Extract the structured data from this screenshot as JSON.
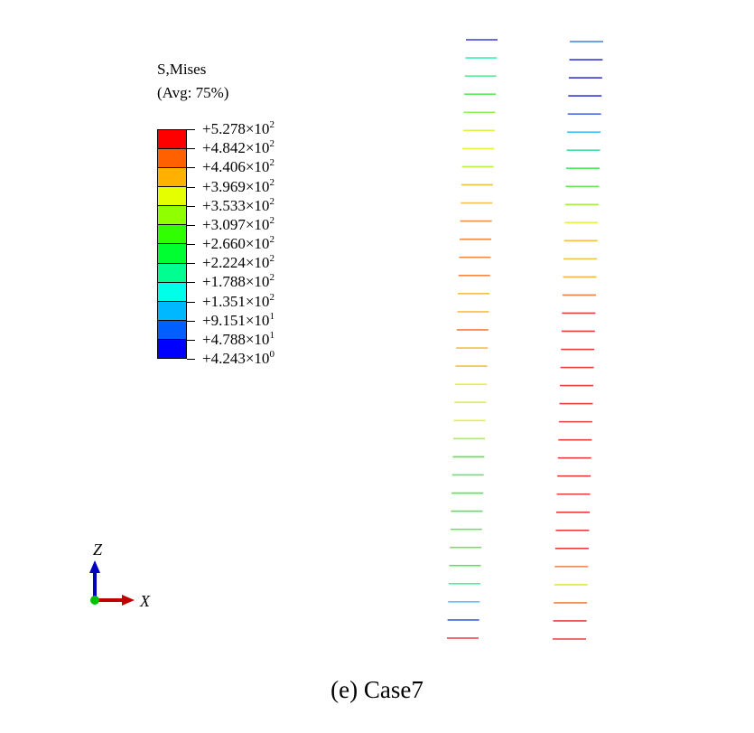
{
  "legend": {
    "title_line1": "S,Mises",
    "title_line2": "(Avg: 75%)",
    "band_colors": [
      "#FF0000",
      "#FF6000",
      "#FFB000",
      "#E6FF00",
      "#90FF00",
      "#30FF00",
      "#00FF30",
      "#00FF90",
      "#00FFE8",
      "#00B8FF",
      "#0060FF",
      "#0000FF"
    ],
    "labels": [
      {
        "m": "+5.278×10",
        "e": "2"
      },
      {
        "m": "+4.842×10",
        "e": "2"
      },
      {
        "m": "+4.406×10",
        "e": "2"
      },
      {
        "m": "+3.969×10",
        "e": "2"
      },
      {
        "m": "+3.533×10",
        "e": "2"
      },
      {
        "m": "+3.097×10",
        "e": "2"
      },
      {
        "m": "+2.660×10",
        "e": "2"
      },
      {
        "m": "+2.224×10",
        "e": "2"
      },
      {
        "m": "+1.788×10",
        "e": "2"
      },
      {
        "m": "+1.351×10",
        "e": "2"
      },
      {
        "m": "+9.151×10",
        "e": "1"
      },
      {
        "m": "+4.788×10",
        "e": "1"
      },
      {
        "m": "+4.243×10",
        "e": "0"
      }
    ]
  },
  "axes_triad": {
    "z_label": "Z",
    "x_label": "X",
    "z_color": "#0000C0",
    "x_color": "#C00000",
    "origin_color": "#00C000"
  },
  "model": {
    "left_column_colors": [
      "#3a3ad8",
      "#40f0b0",
      "#50e890",
      "#60e860",
      "#90f050",
      "#e0f040",
      "#e8f040",
      "#c0f040",
      "#f0c040",
      "#f0c050",
      "#f09040",
      "#f08848",
      "#f08848",
      "#f08848",
      "#f0c048",
      "#f0c048",
      "#f08040",
      "#f0c048",
      "#f0c048",
      "#e8f040",
      "#e0f040",
      "#e0f040",
      "#b0f040",
      "#50e850",
      "#60e860",
      "#50e850",
      "#50e850",
      "#60e850",
      "#70e850",
      "#50e850",
      "#50f0a0",
      "#50c0f0",
      "#4060e0",
      "#e84040"
    ],
    "right_column_colors": [
      "#4080e0",
      "#3a3ad8",
      "#3a3ad8",
      "#3a3ad8",
      "#4060e0",
      "#40c0f0",
      "#40e0a0",
      "#50e860",
      "#60e850",
      "#a0f040",
      "#e8f040",
      "#f0c040",
      "#f0c040",
      "#f0b840",
      "#f08040",
      "#e84040",
      "#e84040",
      "#e84040",
      "#e84040",
      "#e84040",
      "#e84040",
      "#e84040",
      "#e84040",
      "#e84040",
      "#e84040",
      "#e84040",
      "#e84040",
      "#e84040",
      "#e84040",
      "#f08040",
      "#e0e840",
      "#f08040",
      "#e84040",
      "#e84040"
    ]
  },
  "caption": "(e) Case7"
}
